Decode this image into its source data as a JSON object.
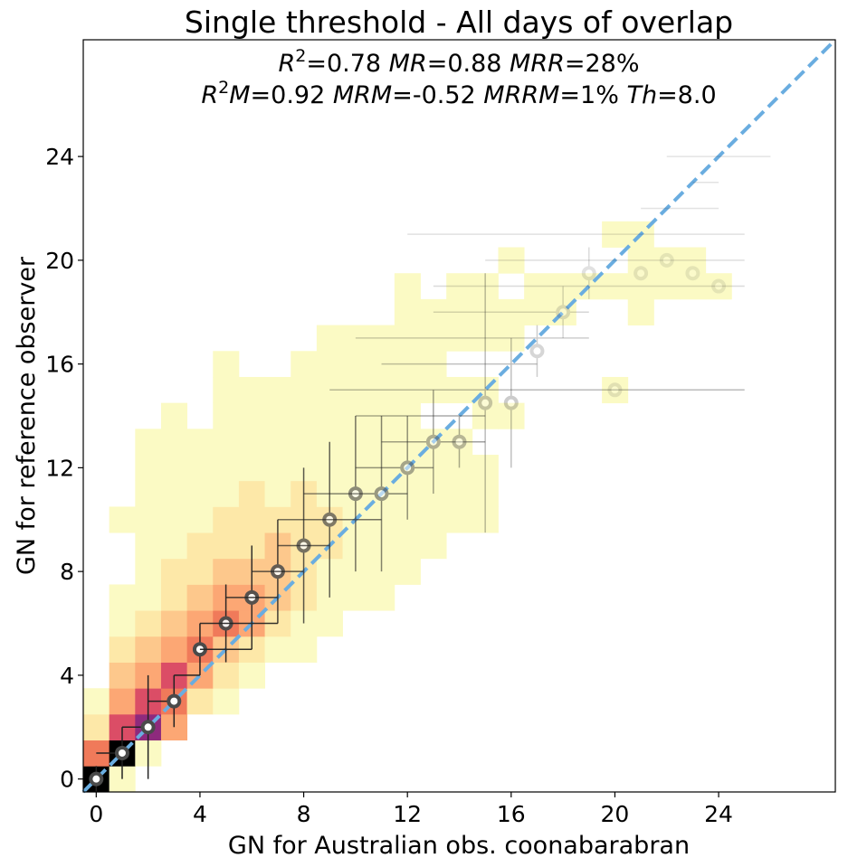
{
  "chart_data": {
    "type": "heatmap",
    "title": "Single threshold - All days of overlap",
    "xlabel": "GN for Australian obs. coonabarabran",
    "ylabel": "GN for reference observer",
    "xlim": [
      -0.5,
      28.5
    ],
    "ylim": [
      -0.5,
      28.5
    ],
    "xticks": [
      0,
      4,
      8,
      12,
      16,
      20,
      24
    ],
    "yticks": [
      0,
      4,
      8,
      12,
      16,
      20,
      24
    ],
    "annotation_lines": [
      "R²=0.78 MR=0.88 MRR=28%",
      "R²M=0.92 MRM=-0.52 MRRM=1% Th=8.0"
    ],
    "identity_line": {
      "color": "#6aade0",
      "style": "dashed"
    },
    "heatmap_colors": [
      "#fbfac4",
      "#fde8a8",
      "#fdc88c",
      "#fca774",
      "#f07a5a",
      "#db4d66",
      "#8e2a7d",
      "#000000"
    ],
    "heatmap_levels": [
      [
        0,
        0,
        7
      ],
      [
        1,
        0,
        0
      ],
      [
        0,
        1,
        4
      ],
      [
        1,
        1,
        7
      ],
      [
        2,
        1,
        0
      ],
      [
        0,
        2,
        1
      ],
      [
        1,
        2,
        5
      ],
      [
        2,
        2,
        6
      ],
      [
        3,
        2,
        3
      ],
      [
        0,
        3,
        0
      ],
      [
        1,
        3,
        3
      ],
      [
        2,
        3,
        5
      ],
      [
        3,
        3,
        4
      ],
      [
        4,
        3,
        1
      ],
      [
        5,
        3,
        0
      ],
      [
        1,
        4,
        2
      ],
      [
        2,
        4,
        3
      ],
      [
        3,
        4,
        5
      ],
      [
        4,
        4,
        3
      ],
      [
        5,
        4,
        1
      ],
      [
        6,
        4,
        0
      ],
      [
        1,
        5,
        1
      ],
      [
        2,
        5,
        2
      ],
      [
        3,
        5,
        3
      ],
      [
        4,
        5,
        4
      ],
      [
        5,
        5,
        2
      ],
      [
        6,
        5,
        1
      ],
      [
        7,
        5,
        0
      ],
      [
        8,
        5,
        0
      ],
      [
        1,
        6,
        0
      ],
      [
        2,
        6,
        1
      ],
      [
        3,
        6,
        2
      ],
      [
        4,
        6,
        3
      ],
      [
        5,
        6,
        4
      ],
      [
        6,
        6,
        3
      ],
      [
        7,
        6,
        1
      ],
      [
        8,
        6,
        0
      ],
      [
        9,
        6,
        0
      ],
      [
        1,
        7,
        0
      ],
      [
        2,
        7,
        0
      ],
      [
        3,
        7,
        1
      ],
      [
        4,
        7,
        2
      ],
      [
        5,
        7,
        3
      ],
      [
        6,
        7,
        3
      ],
      [
        7,
        7,
        2
      ],
      [
        8,
        7,
        1
      ],
      [
        9,
        7,
        0
      ],
      [
        10,
        7,
        0
      ],
      [
        11,
        7,
        0
      ],
      [
        2,
        8,
        0
      ],
      [
        3,
        8,
        1
      ],
      [
        4,
        8,
        1
      ],
      [
        5,
        8,
        2
      ],
      [
        6,
        8,
        2
      ],
      [
        7,
        8,
        2
      ],
      [
        8,
        8,
        1
      ],
      [
        9,
        8,
        0
      ],
      [
        10,
        8,
        0
      ],
      [
        11,
        8,
        0
      ],
      [
        12,
        8,
        0
      ],
      [
        2,
        9,
        0
      ],
      [
        3,
        9,
        0
      ],
      [
        4,
        9,
        1
      ],
      [
        5,
        9,
        1
      ],
      [
        6,
        9,
        1
      ],
      [
        7,
        9,
        2
      ],
      [
        8,
        9,
        1
      ],
      [
        9,
        9,
        1
      ],
      [
        10,
        9,
        0
      ],
      [
        11,
        9,
        0
      ],
      [
        12,
        9,
        0
      ],
      [
        13,
        9,
        0
      ],
      [
        1,
        10,
        0
      ],
      [
        2,
        10,
        0
      ],
      [
        3,
        10,
        0
      ],
      [
        4,
        10,
        0
      ],
      [
        5,
        10,
        1
      ],
      [
        6,
        10,
        1
      ],
      [
        7,
        10,
        1
      ],
      [
        8,
        10,
        1
      ],
      [
        9,
        10,
        1
      ],
      [
        10,
        10,
        0
      ],
      [
        11,
        10,
        0
      ],
      [
        12,
        10,
        0
      ],
      [
        13,
        10,
        0
      ],
      [
        14,
        10,
        0
      ],
      [
        15,
        10,
        0
      ],
      [
        2,
        11,
        0
      ],
      [
        3,
        11,
        0
      ],
      [
        4,
        11,
        0
      ],
      [
        5,
        11,
        0
      ],
      [
        6,
        11,
        1
      ],
      [
        7,
        11,
        0
      ],
      [
        8,
        11,
        1
      ],
      [
        9,
        11,
        0
      ],
      [
        10,
        11,
        0
      ],
      [
        11,
        11,
        0
      ],
      [
        12,
        11,
        0
      ],
      [
        13,
        11,
        0
      ],
      [
        14,
        11,
        0
      ],
      [
        15,
        11,
        0
      ],
      [
        2,
        12,
        0
      ],
      [
        3,
        12,
        0
      ],
      [
        4,
        12,
        0
      ],
      [
        5,
        12,
        0
      ],
      [
        6,
        12,
        0
      ],
      [
        7,
        12,
        0
      ],
      [
        8,
        12,
        0
      ],
      [
        9,
        12,
        0
      ],
      [
        10,
        12,
        0
      ],
      [
        11,
        12,
        0
      ],
      [
        12,
        12,
        0
      ],
      [
        13,
        12,
        0
      ],
      [
        14,
        12,
        0
      ],
      [
        15,
        12,
        0
      ],
      [
        2,
        13,
        0
      ],
      [
        3,
        13,
        0
      ],
      [
        4,
        13,
        0
      ],
      [
        5,
        13,
        0
      ],
      [
        6,
        13,
        0
      ],
      [
        7,
        13,
        0
      ],
      [
        8,
        13,
        0
      ],
      [
        9,
        13,
        0
      ],
      [
        10,
        13,
        0
      ],
      [
        11,
        13,
        0
      ],
      [
        12,
        13,
        0
      ],
      [
        13,
        13,
        0
      ],
      [
        14,
        13,
        0
      ],
      [
        3,
        14,
        0
      ],
      [
        5,
        14,
        0
      ],
      [
        6,
        14,
        0
      ],
      [
        7,
        14,
        0
      ],
      [
        8,
        14,
        0
      ],
      [
        9,
        14,
        0
      ],
      [
        10,
        14,
        0
      ],
      [
        11,
        14,
        0
      ],
      [
        12,
        14,
        0
      ],
      [
        15,
        14,
        0
      ],
      [
        16,
        14,
        0
      ],
      [
        5,
        15,
        0
      ],
      [
        6,
        15,
        0
      ],
      [
        7,
        15,
        0
      ],
      [
        8,
        15,
        0
      ],
      [
        9,
        15,
        0
      ],
      [
        10,
        15,
        0
      ],
      [
        11,
        15,
        0
      ],
      [
        12,
        15,
        0
      ],
      [
        13,
        15,
        0
      ],
      [
        14,
        15,
        0
      ],
      [
        15,
        15,
        0
      ],
      [
        20,
        15,
        0
      ],
      [
        5,
        16,
        0
      ],
      [
        8,
        16,
        0
      ],
      [
        9,
        16,
        0
      ],
      [
        10,
        16,
        0
      ],
      [
        11,
        16,
        0
      ],
      [
        12,
        16,
        0
      ],
      [
        13,
        16,
        0
      ],
      [
        9,
        17,
        0
      ],
      [
        10,
        17,
        0
      ],
      [
        11,
        17,
        0
      ],
      [
        12,
        17,
        0
      ],
      [
        13,
        17,
        0
      ],
      [
        14,
        17,
        0
      ],
      [
        15,
        17,
        0
      ],
      [
        16,
        17,
        0
      ],
      [
        12,
        18,
        0
      ],
      [
        13,
        18,
        0
      ],
      [
        14,
        18,
        0
      ],
      [
        15,
        18,
        0
      ],
      [
        16,
        18,
        0
      ],
      [
        17,
        18,
        0
      ],
      [
        18,
        18,
        0
      ],
      [
        21,
        18,
        0
      ],
      [
        12,
        19,
        0
      ],
      [
        14,
        19,
        0
      ],
      [
        15,
        19,
        0
      ],
      [
        17,
        19,
        0
      ],
      [
        18,
        19,
        0
      ],
      [
        19,
        19,
        0
      ],
      [
        20,
        19,
        0
      ],
      [
        21,
        19,
        0
      ],
      [
        22,
        19,
        0
      ],
      [
        23,
        19,
        0
      ],
      [
        24,
        19,
        0
      ],
      [
        16,
        20,
        0
      ],
      [
        21,
        20,
        0
      ],
      [
        22,
        20,
        0
      ],
      [
        23,
        20,
        0
      ],
      [
        20,
        21,
        0
      ],
      [
        21,
        21,
        0
      ]
    ],
    "means": {
      "x": [
        0,
        1,
        2,
        3,
        4,
        5,
        6,
        7,
        8,
        9,
        10,
        11,
        12,
        13,
        14,
        15,
        16,
        17,
        18,
        19,
        20,
        21,
        22,
        23,
        24
      ],
      "y": [
        0,
        1,
        2,
        3,
        5,
        6,
        7,
        8,
        9,
        10,
        11,
        11,
        12,
        13,
        13,
        14.5,
        14.5,
        16.5,
        18,
        19.5,
        15,
        19.5,
        20,
        19.5,
        19
      ],
      "y_err": [
        0.5,
        1,
        2,
        1,
        1,
        1.5,
        2,
        2,
        3,
        3,
        3,
        3,
        2,
        2,
        1,
        5,
        2.5,
        1,
        1,
        1,
        0,
        0,
        0,
        0,
        0
      ],
      "y_ref": [
        0,
        1,
        2,
        3,
        4,
        5,
        6,
        7,
        8,
        9,
        10,
        11,
        12,
        13,
        14,
        15,
        16,
        17,
        18,
        19,
        20,
        21,
        22,
        23,
        24
      ],
      "x_lo": [
        0,
        0,
        1,
        2,
        3,
        4,
        4,
        5,
        6,
        7,
        7,
        8,
        10,
        11,
        10,
        9,
        11,
        10,
        13,
        13,
        15,
        12,
        21,
        23,
        22
      ],
      "x_hi": [
        0,
        1,
        2,
        3,
        4,
        6,
        7,
        7,
        8,
        9,
        11,
        12,
        13,
        15,
        15,
        25,
        17,
        19,
        19,
        25,
        25,
        25,
        24,
        24,
        26
      ],
      "alpha": [
        1,
        1,
        1,
        1,
        1,
        0.95,
        0.92,
        0.85,
        0.75,
        0.7,
        0.62,
        0.55,
        0.48,
        0.42,
        0.38,
        0.3,
        0.28,
        0.22,
        0.18,
        0.16,
        0.14,
        0.13,
        0.12,
        0.12,
        0.12
      ]
    }
  }
}
